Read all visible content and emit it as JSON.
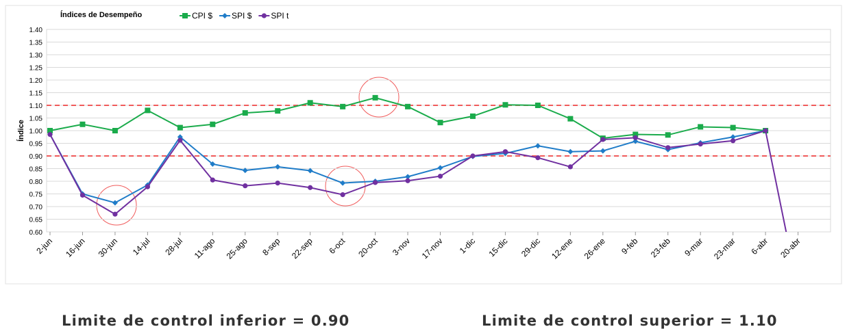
{
  "chart_data": {
    "type": "line",
    "title": "Índices de Desempeño",
    "ylabel": "Índice",
    "categories": [
      "2-jun",
      "16-jun",
      "30-jun",
      "14-jul",
      "28-jul",
      "11-ago",
      "25-ago",
      "8-sep",
      "22-sep",
      "6-oct",
      "20-oct",
      "3-nov",
      "17-nov",
      "1-dic",
      "15-dic",
      "29-dic",
      "12-ene",
      "26-ene",
      "9-feb",
      "23-feb",
      "9-mar",
      "23-mar",
      "6-abr",
      "20-abr"
    ],
    "series": [
      {
        "name": "CPI $",
        "color": "#1aab4b",
        "marker": "square",
        "values": [
          1.0,
          1.025,
          1.0,
          1.08,
          1.012,
          1.025,
          1.07,
          1.078,
          1.11,
          1.095,
          1.13,
          1.095,
          1.032,
          1.057,
          1.102,
          1.1,
          1.047,
          0.97,
          0.985,
          0.983,
          1.015,
          1.012,
          1.0,
          null
        ]
      },
      {
        "name": "SPI $",
        "color": "#1f7cc8",
        "marker": "diamond",
        "values": [
          0.985,
          0.75,
          0.715,
          0.785,
          0.975,
          0.868,
          0.843,
          0.857,
          0.842,
          0.793,
          0.8,
          0.818,
          0.853,
          0.898,
          0.91,
          0.94,
          0.917,
          0.92,
          0.958,
          0.925,
          0.952,
          0.975,
          1.0,
          null
        ]
      },
      {
        "name": "SPI t",
        "color": "#7030a0",
        "marker": "circle",
        "values": [
          0.985,
          0.745,
          0.67,
          0.778,
          0.962,
          0.805,
          0.782,
          0.793,
          0.775,
          0.747,
          0.795,
          0.802,
          0.82,
          0.9,
          0.917,
          0.893,
          0.857,
          0.965,
          0.972,
          0.933,
          0.947,
          0.96,
          1.0,
          0.37
        ]
      }
    ],
    "ylim": [
      0.6,
      1.4
    ],
    "yticks": [
      {
        "value": 0.6,
        "label": "0.60"
      },
      {
        "value": 0.65,
        "label": "0.65"
      },
      {
        "value": 0.7,
        "label": "0.70"
      },
      {
        "value": 0.75,
        "label": "0.75"
      },
      {
        "value": 0.8,
        "label": "0.80"
      },
      {
        "value": 0.85,
        "label": "0.85"
      },
      {
        "value": 0.9,
        "label": "0.90"
      },
      {
        "value": 0.95,
        "label": "0.95"
      },
      {
        "value": 1.0,
        "label": "1.00"
      },
      {
        "value": 1.05,
        "label": "1.05"
      },
      {
        "value": 1.1,
        "label": "1.10"
      },
      {
        "value": 1.15,
        "label": "1.15"
      },
      {
        "value": 1.2,
        "label": "1.20"
      },
      {
        "value": 1.25,
        "label": "1.25"
      },
      {
        "value": 1.3,
        "label": "1.30"
      },
      {
        "value": 1.35,
        "label": "1.35"
      },
      {
        "value": 1.4,
        "label": "1.40"
      }
    ],
    "grid": true,
    "control_limits": [
      {
        "value": 0.9,
        "label": "Limite de control inferior = 0.90",
        "color": "#f05a5a"
      },
      {
        "value": 1.1,
        "label": "Limite de control superior = 1.10",
        "color": "#f05a5a"
      }
    ]
  }
}
